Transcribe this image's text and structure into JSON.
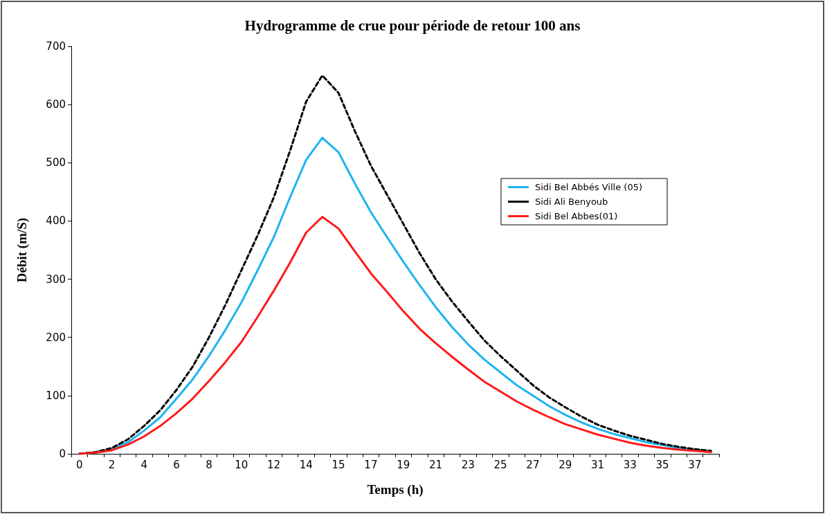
{
  "chart_data": {
    "type": "line",
    "title": "Hydrogramme de crue pour période de retour 100 ans",
    "xlabel": "Temps (h)",
    "ylabel": "Débit (m/S)",
    "categories": [
      "0",
      null,
      "2",
      null,
      "4",
      null,
      "6",
      null,
      "8",
      null,
      "10",
      null,
      "12",
      null,
      "14",
      null,
      "15",
      null,
      "17",
      null,
      "19",
      null,
      "21",
      null,
      "23",
      null,
      "25",
      null,
      "27",
      null,
      "29",
      null,
      "31",
      null,
      "33",
      null,
      "35",
      null,
      "37",
      null
    ],
    "series": [
      {
        "name": "Sidi Bel Abbés Ville (05)",
        "color": "#1fb4f0",
        "line_style": "solid",
        "values": [
          0,
          2,
          8,
          20,
          40,
          63,
          95,
          128,
          168,
          212,
          260,
          315,
          372,
          440,
          505,
          543,
          518,
          465,
          415,
          372,
          330,
          290,
          252,
          218,
          188,
          162,
          140,
          118,
          100,
          82,
          67,
          54,
          43,
          34,
          27,
          20,
          15,
          10,
          7,
          4
        ]
      },
      {
        "name": "Sidi Ali Benyoub",
        "color": "#000000",
        "line_style": "dashed",
        "values": [
          0,
          3,
          10,
          25,
          48,
          75,
          110,
          150,
          200,
          255,
          315,
          375,
          440,
          520,
          605,
          650,
          620,
          555,
          495,
          445,
          395,
          345,
          300,
          262,
          228,
          195,
          168,
          143,
          118,
          97,
          80,
          64,
          50,
          40,
          31,
          24,
          17,
          12,
          8,
          5
        ]
      },
      {
        "name": "Sidi Bel Abbes(01)",
        "color": "#ff1a1a",
        "line_style": "solid",
        "values": [
          0,
          2,
          6,
          16,
          30,
          48,
          70,
          95,
          125,
          157,
          192,
          235,
          280,
          328,
          380,
          407,
          387,
          348,
          310,
          278,
          245,
          215,
          190,
          167,
          145,
          124,
          107,
          90,
          76,
          63,
          51,
          42,
          33,
          26,
          19,
          14,
          10,
          7,
          5,
          3
        ]
      }
    ],
    "ylim": [
      0,
      700
    ],
    "yticks": [
      0,
      100,
      200,
      300,
      400,
      500,
      600,
      700
    ],
    "grid": false,
    "legend": "right",
    "marker": "none"
  }
}
